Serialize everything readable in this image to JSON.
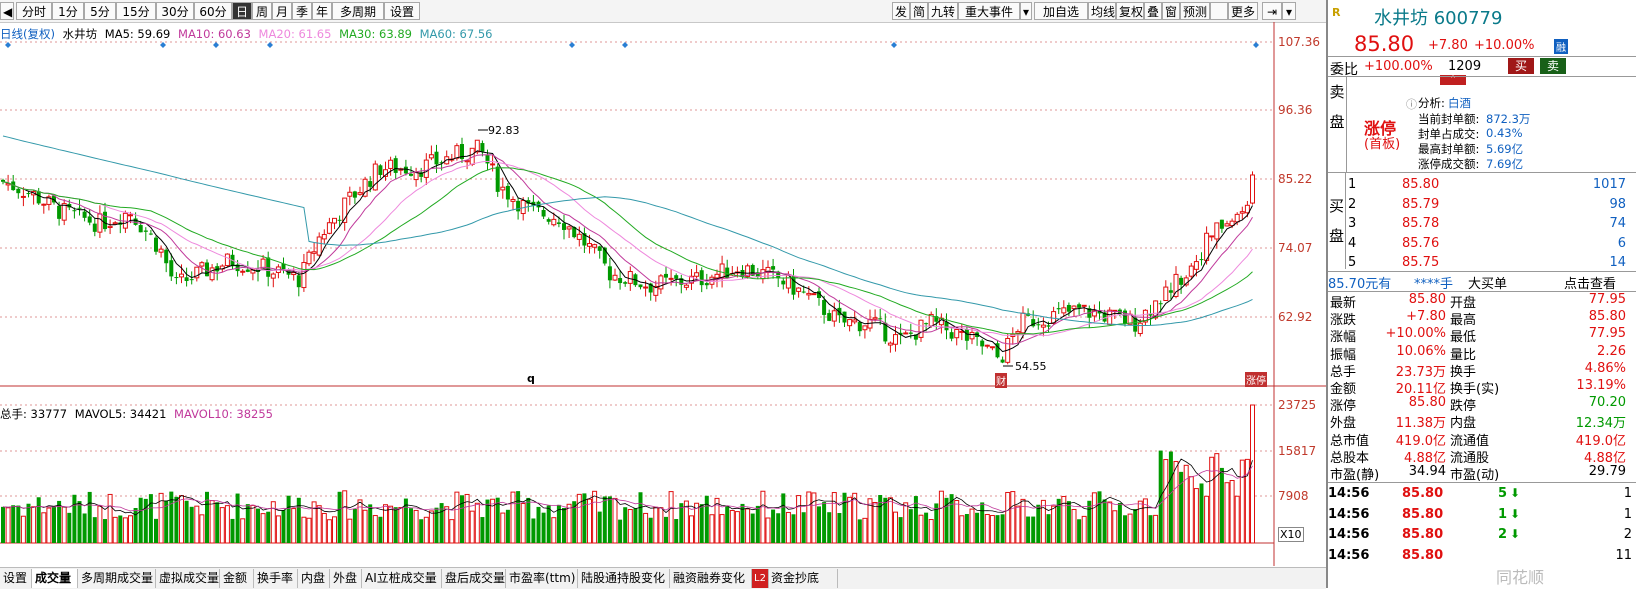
{
  "toolbar": {
    "left": [
      "分时",
      "1分",
      "5分",
      "15分",
      "30分",
      "60分",
      "日",
      "周",
      "月",
      "季",
      "年",
      "多周期",
      "设置"
    ],
    "active_index": 6,
    "right": [
      "发",
      "简",
      "九转",
      "重大事件",
      "加自选",
      "均线",
      "复权",
      "叠",
      "窗",
      "预测",
      "",
      "更多"
    ]
  },
  "legend": {
    "title": "日线(复权)",
    "name": "水井坊",
    "ma5": "MA5: 59.69",
    "ma10": "MA10: 60.63",
    "ma20": "MA20: 61.65",
    "ma30": "MA30: 63.89",
    "ma60": "MA60: 67.56"
  },
  "price_axis": [
    "107.36",
    "96.36",
    "85.22",
    "74.07",
    "62.92"
  ],
  "high_label": "92.83",
  "low_label": "54.55",
  "q_label": "q",
  "fin_label": "财",
  "zt_label": "涨停",
  "vol_legend": {
    "total": "总手: 33777",
    "mavol5": "MAVOL5: 34421",
    "mavol10": "MAVOL10: 38255"
  },
  "vol_axis": [
    "23725",
    "15817",
    "7908"
  ],
  "vol_unit": "X10",
  "colors": {
    "up": "#e01010",
    "down": "#009900",
    "ma5": "#000000",
    "ma10": "#c0399b",
    "ma20": "#ee88dd",
    "ma30": "#22aa22",
    "ma60": "#3399aa"
  },
  "bottom_tabs": [
    "设置",
    "成交量",
    "多周期成交量",
    "虚拟成交量",
    "金额",
    "换手率",
    "内盘",
    "外盘",
    "AI立桩成交量",
    "盘后成交量",
    "市盈率(ttm)",
    "陆股通持股变化",
    "融资融券变化",
    "资金抄底"
  ],
  "bottom_active": 1,
  "l2": "L2",
  "stock": {
    "code_name": "水井坊 600779",
    "price": "85.80",
    "change": "+7.80",
    "pct": "+10.00%",
    "rong": "融",
    "weibi_label": "委比",
    "weibi": "+100.00%",
    "weicha": "1209",
    "buy_btn": "买",
    "sell_btn": "卖",
    "sell_side": [
      "卖",
      "盘"
    ],
    "buy_side": [
      "买",
      "盘"
    ],
    "limit_title": "涨停",
    "limit_sub": "(首板)",
    "analysis_label": "分析:",
    "analysis_value": "白酒",
    "limit_info": [
      {
        "label": "当前封单额:",
        "value": "872.3万"
      },
      {
        "label": "封单占成交:",
        "value": "0.43%"
      },
      {
        "label": "最高封单额:",
        "value": "5.69亿"
      },
      {
        "label": "涨停成交额:",
        "value": "7.69亿"
      }
    ],
    "bids": [
      {
        "lvl": "1",
        "price": "85.80",
        "vol": "1017"
      },
      {
        "lvl": "2",
        "price": "85.79",
        "vol": "98"
      },
      {
        "lvl": "3",
        "price": "85.78",
        "vol": "74"
      },
      {
        "lvl": "4",
        "price": "85.76",
        "vol": "6"
      },
      {
        "lvl": "5",
        "price": "85.75",
        "vol": "14"
      }
    ],
    "bar": [
      "85.70元有",
      "****手",
      "大买单",
      "点击查看"
    ],
    "stats": [
      {
        "l": "最新",
        "v": "85.80",
        "vc": "red",
        "l2": "开盘",
        "v2": "77.95",
        "v2c": "red"
      },
      {
        "l": "涨跌",
        "v": "+7.80",
        "vc": "red",
        "l2": "最高",
        "v2": "85.80",
        "v2c": "red"
      },
      {
        "l": "涨幅",
        "v": "+10.00%",
        "vc": "red",
        "l2": "最低",
        "v2": "77.95",
        "v2c": "red"
      },
      {
        "l": "振幅",
        "v": "10.06%",
        "vc": "red",
        "l2": "量比",
        "v2": "2.26",
        "v2c": "red"
      },
      {
        "l": "总手",
        "v": "23.73万",
        "vc": "red",
        "l2": "换手",
        "v2": "4.86%",
        "v2c": "red"
      },
      {
        "l": "金额",
        "v": "20.11亿",
        "vc": "red",
        "l2": "换手(实)",
        "v2": "13.19%",
        "v2c": "red"
      },
      {
        "l": "涨停",
        "v": "85.80",
        "vc": "red",
        "l2": "跌停",
        "v2": "70.20",
        "v2c": "green"
      },
      {
        "l": "外盘",
        "v": "11.38万",
        "vc": "red",
        "l2": "内盘",
        "v2": "12.34万",
        "v2c": "green"
      },
      {
        "l": "总市值",
        "v": "419.0亿",
        "vc": "red",
        "l2": "流通值",
        "v2": "419.0亿",
        "v2c": "red"
      },
      {
        "l": "总股本",
        "v": "4.88亿",
        "vc": "red",
        "l2": "流通股",
        "v2": "4.88亿",
        "v2c": "red"
      },
      {
        "l": "市盈(静)",
        "v": "34.94",
        "vc": "black",
        "l2": "市盈(动)",
        "v2": "29.79",
        "v2c": "black"
      }
    ],
    "ticks": [
      {
        "t": "14:56",
        "p": "85.80",
        "v": "5",
        "d": "down",
        "n": "1"
      },
      {
        "t": "14:56",
        "p": "85.80",
        "v": "1",
        "d": "down",
        "n": "1"
      },
      {
        "t": "14:56",
        "p": "85.80",
        "v": "2",
        "d": "down",
        "n": "2"
      },
      {
        "t": "14:56",
        "p": "85.80",
        "v": "",
        "d": "",
        "n": "11"
      }
    ],
    "watermark": "同花顺"
  }
}
